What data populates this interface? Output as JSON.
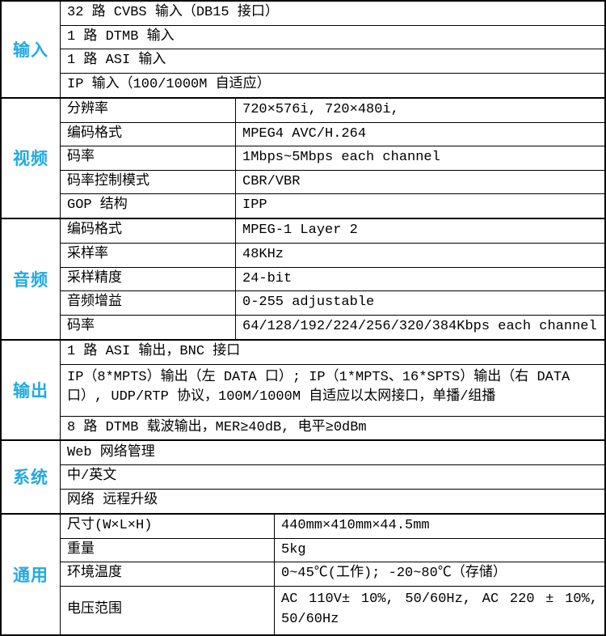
{
  "accent_color": "#21aae2",
  "sections": [
    {
      "label": "输入",
      "rows": [
        {
          "value": "32 路 CVBS 输入（DB15 接口）"
        },
        {
          "value": "1 路 DTMB 输入"
        },
        {
          "value": "1 路 ASI 输入"
        },
        {
          "value": "IP 输入（100/1000M 自适应）"
        }
      ]
    },
    {
      "label": "视频",
      "rows": [
        {
          "param": "分辨率",
          "value": "720×576i, 720×480i,"
        },
        {
          "param": "编码格式",
          "value": "MPEG4 AVC/H.264"
        },
        {
          "param": "码率",
          "value": "1Mbps~5Mbps each channel"
        },
        {
          "param": "码率控制模式",
          "value": "CBR/VBR"
        },
        {
          "param": "GOP 结构",
          "value": "IPP"
        }
      ]
    },
    {
      "label": "音频",
      "rows": [
        {
          "param": "编码格式",
          "value": "MPEG-1 Layer 2"
        },
        {
          "param": "采样率",
          "value": "48KHz"
        },
        {
          "param": "采样精度",
          "value": "24-bit"
        },
        {
          "param": "音频增益",
          "value": "0-255 adjustable"
        },
        {
          "param": "码率",
          "value": "64/128/192/224/256/320/384Kbps each channel"
        }
      ]
    },
    {
      "label": "输出",
      "rows": [
        {
          "value": "1 路 ASI 输出，BNC 接口"
        },
        {
          "value": "IP（8*MPTS）输出（左 DATA 口）; IP（1*MPTS、16*SPTS）输出（右 DATA 口）, UDP/RTP 协议，100M/1000M 自适应以太网接口，单播/组播"
        },
        {
          "value": "8 路 DTMB 载波输出，MER≥40dB, 电平≥0dBm"
        }
      ]
    },
    {
      "label": "系统",
      "rows": [
        {
          "value": "Web 网络管理"
        },
        {
          "value": "中/英文"
        },
        {
          "value": "网络 远程升级"
        }
      ]
    },
    {
      "label": "通用",
      "rows": [
        {
          "param": "尺寸(W×L×H)",
          "value": "440mm×410mm×44.5mm"
        },
        {
          "param": "重量",
          "value": "5kg"
        },
        {
          "param": "环境温度",
          "value": "0~45℃(工作); -20~80℃（存储）"
        },
        {
          "param": "电压范围",
          "value": "AC 110V± 10%, 50/60Hz, AC 220 ± 10%, 50/60Hz"
        }
      ]
    }
  ]
}
